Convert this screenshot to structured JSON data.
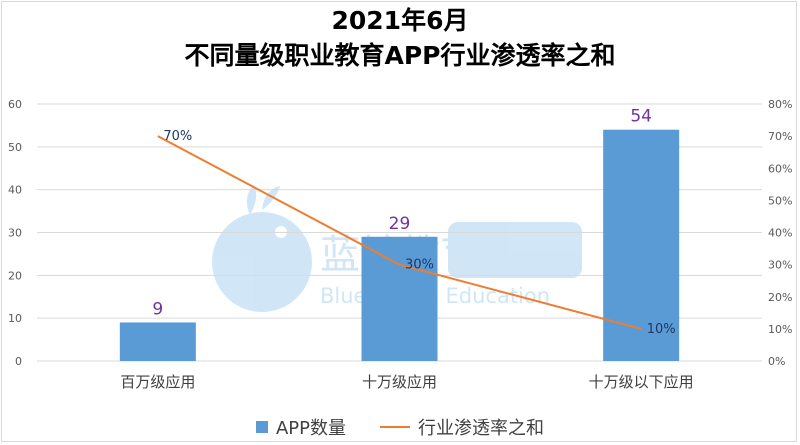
{
  "chart_data": {
    "type": "bar+line",
    "title": "2021年6月",
    "subtitle": "不同量级职业教育APP行业渗透率之和",
    "categories": [
      "百万级应用",
      "十万级应用",
      "十万级以下应用"
    ],
    "series": [
      {
        "name": "APP数量",
        "type": "bar",
        "axis": "left",
        "values": [
          9,
          29,
          54
        ],
        "color": "#5b9bd5",
        "label_color": "#7030a0"
      },
      {
        "name": "行业渗透率之和",
        "type": "line",
        "axis": "right",
        "values": [
          70,
          30,
          10
        ],
        "color": "#ed7d31",
        "label_color": "#1f3864",
        "label_suffix": "%"
      }
    ],
    "y_left": {
      "min": 0,
      "max": 60,
      "ticks": [
        "0",
        "10",
        "20",
        "30",
        "40",
        "50",
        "60"
      ]
    },
    "y_right": {
      "min": 0,
      "max": 80,
      "ticks": [
        "0%",
        "10%",
        "20%",
        "30%",
        "40%",
        "50%",
        "60%",
        "70%",
        "80%"
      ]
    },
    "grid": true,
    "legend_position": "bottom"
  },
  "watermark": {
    "cn": "蓝鲸教育",
    "en": "Blue Whale Education"
  }
}
